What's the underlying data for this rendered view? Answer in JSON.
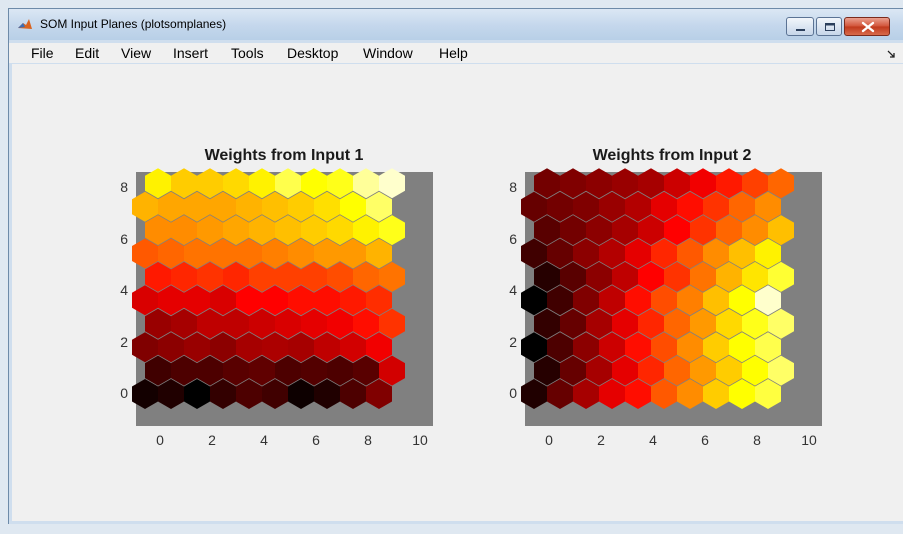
{
  "window": {
    "title": "SOM Input Planes (plotsomplanes)",
    "icon": "matlab-icon",
    "controls": [
      "minimize-icon",
      "maximize-icon",
      "close-icon"
    ]
  },
  "menu": {
    "items": [
      "File",
      "Edit",
      "View",
      "Insert",
      "Tools",
      "Desktop",
      "Window",
      "Help"
    ]
  },
  "plots": [
    {
      "title": "Weights from Input 1",
      "yticks": [
        "8",
        "6",
        "4",
        "2",
        "0"
      ],
      "xticks": [
        "0",
        "2",
        "4",
        "6",
        "8",
        "10"
      ]
    },
    {
      "title": "Weights from Input 2",
      "yticks": [
        "8",
        "6",
        "4",
        "2",
        "0"
      ],
      "xticks": [
        "0",
        "2",
        "4",
        "6",
        "8",
        "10"
      ]
    }
  ],
  "chart_data": [
    {
      "type": "heatmap",
      "title": "Weights from Input 1",
      "colormap": "hot",
      "grid": "hexagonal 10x10",
      "xlim": [
        -1,
        10.5
      ],
      "ylim": [
        -1,
        8.6
      ],
      "xticks": [
        0,
        2,
        4,
        6,
        8,
        10
      ],
      "yticks": [
        0,
        2,
        4,
        6,
        8
      ],
      "values": [
        [
          0.03,
          0.05,
          0.0,
          0.08,
          0.12,
          0.1,
          0.02,
          0.05,
          0.12,
          0.2
        ],
        [
          0.1,
          0.12,
          0.12,
          0.14,
          0.15,
          0.12,
          0.13,
          0.12,
          0.14,
          0.33
        ],
        [
          0.2,
          0.22,
          0.24,
          0.22,
          0.26,
          0.27,
          0.26,
          0.3,
          0.33,
          0.38
        ],
        [
          0.24,
          0.26,
          0.3,
          0.3,
          0.32,
          0.34,
          0.36,
          0.38,
          0.42,
          0.48
        ],
        [
          0.34,
          0.36,
          0.36,
          0.34,
          0.4,
          0.4,
          0.42,
          0.42,
          0.44,
          0.47
        ],
        [
          0.44,
          0.46,
          0.48,
          0.46,
          0.5,
          0.5,
          0.5,
          0.52,
          0.56,
          0.58
        ],
        [
          0.54,
          0.56,
          0.58,
          0.58,
          0.58,
          0.6,
          0.62,
          0.64,
          0.64,
          0.68
        ],
        [
          0.62,
          0.62,
          0.64,
          0.66,
          0.68,
          0.7,
          0.72,
          0.74,
          0.78,
          0.82
        ],
        [
          0.68,
          0.66,
          0.66,
          0.66,
          0.68,
          0.7,
          0.72,
          0.75,
          0.8,
          0.88
        ],
        [
          0.78,
          0.72,
          0.72,
          0.74,
          0.78,
          0.86,
          0.8,
          0.82,
          0.92,
          0.96
        ]
      ]
    },
    {
      "type": "heatmap",
      "title": "Weights from Input 2",
      "colormap": "hot",
      "grid": "hexagonal 10x10",
      "xlim": [
        -1,
        10.5
      ],
      "ylim": [
        -1,
        8.6
      ],
      "xticks": [
        0,
        2,
        4,
        6,
        8,
        10
      ],
      "yticks": [
        0,
        2,
        4,
        6,
        8
      ],
      "values": [
        [
          0.05,
          0.16,
          0.26,
          0.36,
          0.42,
          0.54,
          0.62,
          0.72,
          0.8,
          0.85
        ],
        [
          0.06,
          0.16,
          0.26,
          0.36,
          0.46,
          0.56,
          0.64,
          0.72,
          0.8,
          0.88
        ],
        [
          0.0,
          0.12,
          0.22,
          0.32,
          0.42,
          0.52,
          0.62,
          0.72,
          0.8,
          0.86
        ],
        [
          0.08,
          0.16,
          0.26,
          0.36,
          0.46,
          0.56,
          0.64,
          0.74,
          0.82,
          0.88
        ],
        [
          0.0,
          0.1,
          0.2,
          0.3,
          0.42,
          0.52,
          0.6,
          0.7,
          0.8,
          0.96
        ],
        [
          0.06,
          0.14,
          0.22,
          0.3,
          0.4,
          0.48,
          0.58,
          0.68,
          0.76,
          0.84
        ],
        [
          0.1,
          0.16,
          0.22,
          0.28,
          0.36,
          0.46,
          0.54,
          0.62,
          0.7,
          0.78
        ],
        [
          0.14,
          0.18,
          0.22,
          0.26,
          0.32,
          0.4,
          0.48,
          0.56,
          0.62,
          0.7
        ],
        [
          0.16,
          0.18,
          0.2,
          0.24,
          0.28,
          0.36,
          0.42,
          0.48,
          0.56,
          0.62
        ],
        [
          0.18,
          0.2,
          0.22,
          0.24,
          0.26,
          0.32,
          0.38,
          0.44,
          0.5,
          0.56
        ]
      ]
    }
  ]
}
